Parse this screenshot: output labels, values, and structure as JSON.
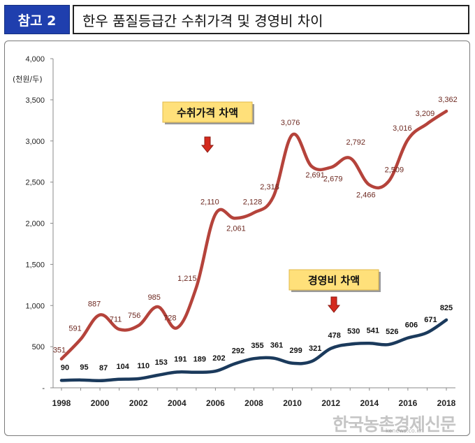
{
  "header": {
    "badge": "참고 2",
    "title": "한우 품질등급간 수취가격 및 경영비 차이"
  },
  "chart_data": {
    "type": "line",
    "unit_label": "(천원/두)",
    "x": [
      1998,
      1999,
      2000,
      2001,
      2002,
      2003,
      2004,
      2005,
      2006,
      2007,
      2008,
      2009,
      2010,
      2011,
      2012,
      2013,
      2014,
      2015,
      2016,
      2017,
      2018
    ],
    "xticks": [
      "1998",
      "2000",
      "2002",
      "2004",
      "2006",
      "2008",
      "2010",
      "2012",
      "2014",
      "2016",
      "2018"
    ],
    "ylim": [
      0,
      4000
    ],
    "yticks": [
      "-",
      "500",
      "1,000",
      "1,500",
      "2,000",
      "2,500",
      "3,000",
      "3,500",
      "4,000"
    ],
    "series": [
      {
        "name": "수취가격 차액",
        "color": "#b5433b",
        "values": [
          351,
          591,
          887,
          711,
          756,
          985,
          728,
          1215,
          2110,
          2061,
          2128,
          2318,
          3076,
          2691,
          2679,
          2792,
          2466,
          2509,
          3016,
          3209,
          3362
        ],
        "labels": [
          "351",
          "591",
          "887",
          "711",
          "756",
          "985",
          "728",
          "1,215",
          "2,110",
          "2,061",
          "2,128",
          "2,318",
          "3,076",
          "2,691",
          "2,679",
          "2,792",
          "2,466",
          "2,509",
          "3,016",
          "3,209",
          "3,362"
        ],
        "label_color": "#6e2a22"
      },
      {
        "name": "경영비 차액",
        "color": "#1b3a5c",
        "values": [
          90,
          95,
          87,
          104,
          110,
          153,
          191,
          189,
          202,
          292,
          355,
          361,
          299,
          321,
          478,
          530,
          541,
          526,
          606,
          671,
          825
        ],
        "labels": [
          "90",
          "95",
          "87",
          "104",
          "110",
          "153",
          "191",
          "189",
          "202",
          "292",
          "355",
          "361",
          "299",
          "321",
          "478",
          "530",
          "541",
          "526",
          "606",
          "671",
          "825"
        ],
        "label_color": "#111111"
      }
    ],
    "grid": false,
    "legend": "callouts"
  },
  "watermark": {
    "text": "한국농촌경제신문",
    "url": "kenews.co.kr"
  }
}
